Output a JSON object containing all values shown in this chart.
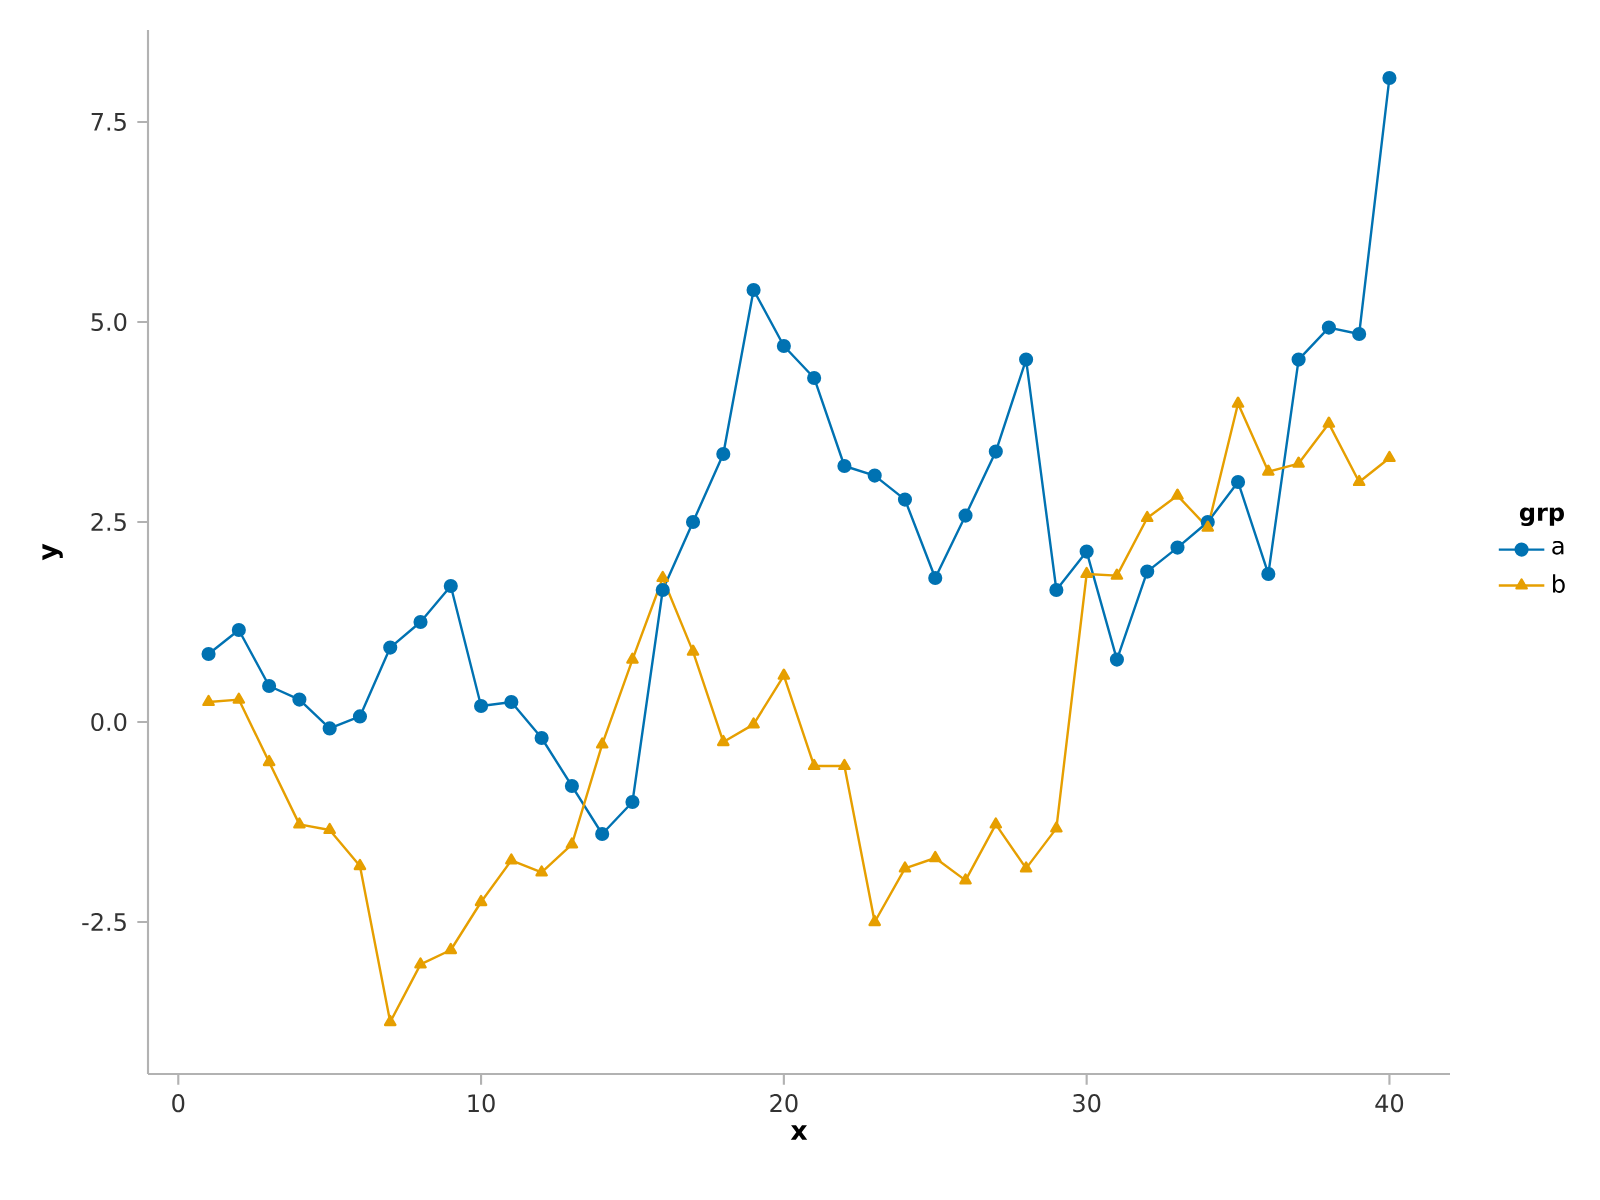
{
  "chart_data": {
    "type": "line",
    "xlabel": "x",
    "ylabel": "y",
    "legend_title": "grp",
    "legend": "right",
    "grid": false,
    "x": [
      1,
      2,
      3,
      4,
      5,
      6,
      7,
      8,
      9,
      10,
      11,
      12,
      13,
      14,
      15,
      16,
      17,
      18,
      19,
      20,
      21,
      22,
      23,
      24,
      25,
      26,
      27,
      28,
      29,
      30,
      31,
      32,
      33,
      34,
      35,
      36,
      37,
      38,
      39,
      40
    ],
    "xlim": [
      -1,
      42
    ],
    "xticks": [
      0,
      10,
      20,
      30,
      40
    ],
    "ylim": [
      -4.4,
      8.65
    ],
    "yticks": [
      -2.5,
      {
        "value": 0,
        "label": "0.0"
      },
      2.5,
      {
        "value": 5,
        "label": "5.0"
      },
      7.5
    ],
    "series": [
      {
        "name": "a",
        "color": "#0072b2",
        "marker": "circle",
        "values": [
          0.85,
          1.15,
          0.45,
          0.28,
          -0.08,
          0.07,
          0.93,
          1.25,
          1.7,
          0.2,
          0.25,
          -0.2,
          -0.8,
          -1.4,
          -1.0,
          1.65,
          2.5,
          3.35,
          5.4,
          4.7,
          4.3,
          3.2,
          3.08,
          2.78,
          1.8,
          2.58,
          3.38,
          4.53,
          1.65,
          2.13,
          0.78,
          1.88,
          2.18,
          2.5,
          3.0,
          1.85,
          4.53,
          4.93,
          4.85,
          8.05
        ]
      },
      {
        "name": "b",
        "color": "#e69f00",
        "marker": "triangle",
        "values": [
          0.25,
          0.28,
          -0.5,
          -1.28,
          -1.35,
          -1.8,
          -3.75,
          -3.03,
          -2.85,
          -2.25,
          -1.73,
          -1.88,
          -1.53,
          -0.28,
          0.78,
          1.8,
          0.88,
          -0.25,
          -0.03,
          0.58,
          -0.55,
          -0.55,
          -2.5,
          -1.83,
          -1.7,
          -1.98,
          -1.28,
          -1.83,
          -1.33,
          1.85,
          1.83,
          2.55,
          2.83,
          2.43,
          3.98,
          3.13,
          3.23,
          3.73,
          3.0,
          3.3
        ]
      }
    ]
  }
}
